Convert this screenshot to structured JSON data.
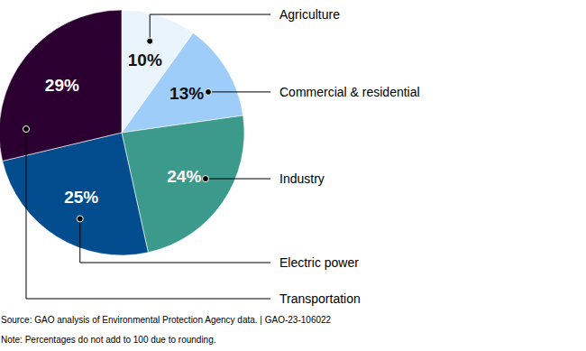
{
  "chart_data": {
    "type": "pie",
    "categories": [
      "Agriculture",
      "Commercial & residential",
      "Industry",
      "Electric power",
      "Transportation"
    ],
    "values": [
      10,
      13,
      24,
      25,
      29
    ],
    "value_labels": [
      "10%",
      "13%",
      "24%",
      "25%",
      "29%"
    ],
    "colors": [
      "#eaf4fd",
      "#9fcdf9",
      "#3c9a8c",
      "#034d8e",
      "#2b0030"
    ],
    "data_labels": true,
    "source": "Source: GAO analysis of Environmental Protection Agency data.  |  GAO-23-106022",
    "note": "Note: Percentages do not add to 100 due to rounding."
  }
}
